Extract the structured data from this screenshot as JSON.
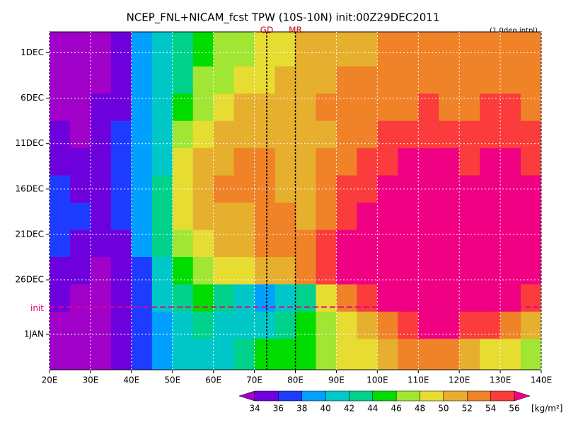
{
  "chart_data": {
    "type": "heatmap",
    "title": "NCEP_FNL+NICAM_fcst TPW (10S-10N) init:00Z29DEC2011",
    "subtitle": "(1.0deg intpl)",
    "x": [
      22.5,
      27.5,
      32.5,
      37.5,
      42.5,
      47.5,
      52.5,
      57.5,
      62.5,
      67.5,
      72.5,
      77.5,
      82.5,
      87.5,
      92.5,
      97.5,
      102.5,
      107.5,
      112.5,
      117.5,
      122.5,
      127.5,
      132.5,
      137.5
    ],
    "y": [
      0,
      3,
      6,
      9,
      12,
      15,
      18,
      21,
      24,
      27,
      30,
      33
    ],
    "values": [
      [
        33,
        33,
        33,
        35,
        38,
        41,
        43,
        45,
        46,
        47,
        48,
        49,
        50,
        51,
        51,
        51,
        52,
        53,
        53,
        52,
        53,
        53,
        53,
        52
      ],
      [
        33,
        33,
        33,
        35,
        38,
        41,
        43,
        46,
        47,
        48,
        49,
        50,
        51,
        51,
        52,
        52,
        52,
        53,
        53,
        53,
        53,
        53,
        53,
        53
      ],
      [
        33,
        33,
        34,
        35,
        38,
        40,
        45,
        47,
        49,
        50,
        51,
        51,
        51,
        52,
        52,
        52,
        53,
        53,
        54,
        53,
        53,
        54,
        54,
        53
      ],
      [
        34,
        33,
        34,
        36,
        38,
        40,
        46,
        49,
        50,
        51,
        51,
        51,
        51,
        51,
        52,
        53,
        54,
        54,
        55,
        55,
        54,
        55,
        55,
        54
      ],
      [
        35,
        34,
        34,
        36,
        39,
        41,
        48,
        50,
        51,
        52,
        52,
        51,
        51,
        52,
        53,
        54,
        55,
        56,
        57,
        56,
        55,
        56,
        56,
        55
      ],
      [
        36,
        35,
        34,
        36,
        39,
        42,
        49,
        51,
        52,
        52,
        52,
        51,
        51,
        52,
        54,
        55,
        56,
        57,
        57,
        57,
        57,
        57,
        57,
        56
      ],
      [
        37,
        36,
        35,
        36,
        39,
        42,
        48,
        50,
        51,
        51,
        52,
        52,
        51,
        53,
        55,
        56,
        57,
        57,
        57,
        57,
        57,
        57,
        57,
        56
      ],
      [
        36,
        35,
        34,
        35,
        38,
        42,
        47,
        49,
        50,
        51,
        52,
        52,
        53,
        55,
        56,
        57,
        57,
        57,
        57,
        57,
        57,
        57,
        57,
        57
      ],
      [
        35,
        34,
        33,
        34,
        37,
        41,
        45,
        47,
        48,
        49,
        50,
        50,
        52,
        54,
        56,
        57,
        57,
        57,
        57,
        57,
        57,
        57,
        56,
        56
      ],
      [
        34,
        33,
        33,
        34,
        37,
        40,
        43,
        44,
        42,
        41,
        39,
        40,
        43,
        48,
        52,
        55,
        56,
        57,
        57,
        57,
        57,
        57,
        56,
        55
      ],
      [
        33,
        33,
        33,
        34,
        36,
        38,
        41,
        42,
        40,
        40,
        41,
        43,
        45,
        46,
        48,
        51,
        53,
        55,
        56,
        56,
        55,
        54,
        52,
        50
      ],
      [
        33,
        33,
        33,
        34,
        36,
        38,
        40,
        41,
        40,
        42,
        44,
        44,
        45,
        46,
        48,
        49,
        50,
        52,
        53,
        53,
        51,
        49,
        48,
        47
      ]
    ],
    "xlim": [
      20,
      140
    ],
    "xticks": [
      {
        "value": 20,
        "label": "20E"
      },
      {
        "value": 30,
        "label": "30E"
      },
      {
        "value": 40,
        "label": "40E"
      },
      {
        "value": 50,
        "label": "50E"
      },
      {
        "value": 60,
        "label": "60E"
      },
      {
        "value": 70,
        "label": "70E"
      },
      {
        "value": 80,
        "label": "80E"
      },
      {
        "value": 90,
        "label": "90E"
      },
      {
        "value": 100,
        "label": "100E"
      },
      {
        "value": 110,
        "label": "110E"
      },
      {
        "value": 120,
        "label": "120E"
      },
      {
        "value": 130,
        "label": "130E"
      },
      {
        "value": 140,
        "label": "140E"
      }
    ],
    "ylim": [
      -2.3,
      34.9
    ],
    "y_inverted": true,
    "yticks": [
      {
        "value": 0,
        "label": "1DEC"
      },
      {
        "value": 5,
        "label": "6DEC"
      },
      {
        "value": 10,
        "label": "11DEC"
      },
      {
        "value": 15,
        "label": "16DEC"
      },
      {
        "value": 20,
        "label": "21DEC"
      },
      {
        "value": 25,
        "label": "26DEC"
      },
      {
        "value": 31,
        "label": "1JAN"
      }
    ],
    "init": {
      "value": 28,
      "label": "init",
      "color": "#e6008c"
    },
    "annotations": [
      {
        "label": "GD",
        "x": 73
      },
      {
        "label": "MR",
        "x": 80
      }
    ],
    "grid": true,
    "colorbar": {
      "levels": [
        34,
        36,
        38,
        40,
        42,
        44,
        46,
        48,
        50,
        52,
        54,
        56
      ],
      "colors": [
        "#a000c8",
        "#6e00dc",
        "#1e3cff",
        "#00a0ff",
        "#00c8c8",
        "#00d28c",
        "#00dc00",
        "#a0e632",
        "#e6dc32",
        "#e6af2d",
        "#f08228",
        "#fa3c3c",
        "#f00082"
      ],
      "unit": "[kg/m²]"
    }
  }
}
